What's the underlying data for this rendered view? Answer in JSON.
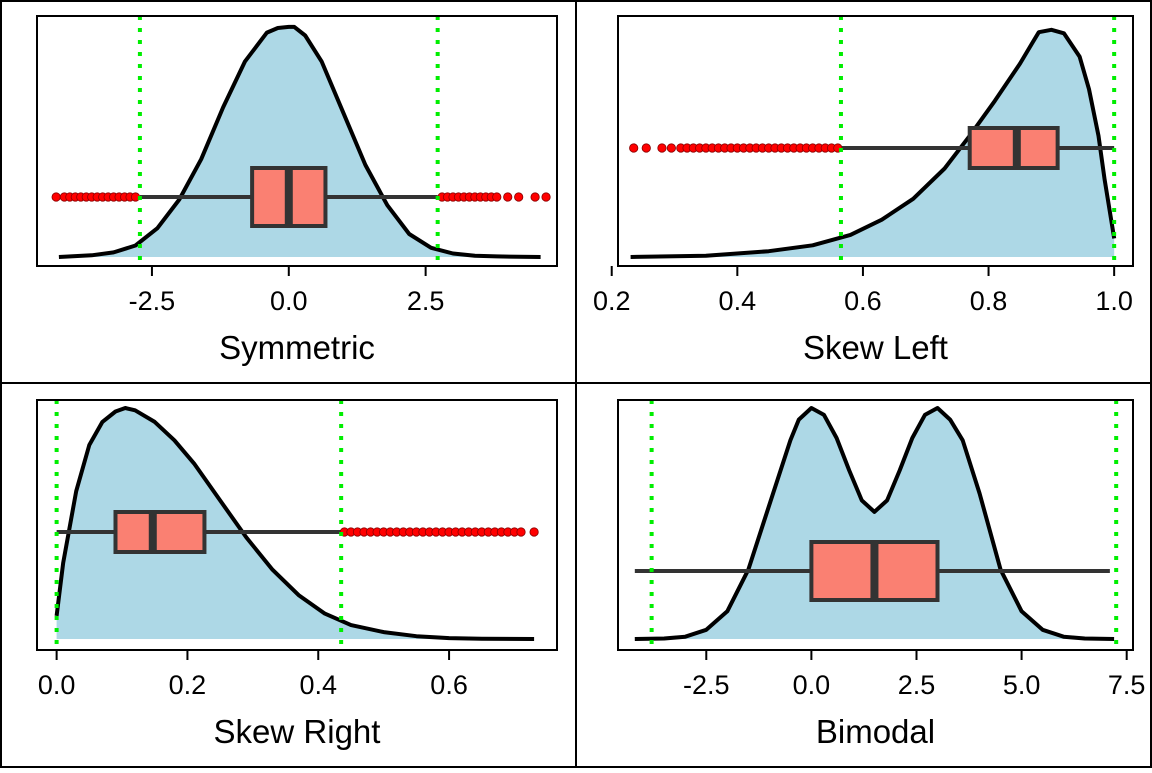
{
  "colors": {
    "density_fill": "#add8e6",
    "density_line": "#000000",
    "box_fill": "#fa8072",
    "box_line": "#333333",
    "outlier": "#ff0000",
    "fence_line": "#00ee00"
  },
  "chart_data": [
    {
      "type": "density_boxplot",
      "xlabel": "Symmetric",
      "xlim": [
        -4.6,
        4.9
      ],
      "xticks": [
        -2.5,
        0.0,
        2.5
      ],
      "xtick_labels": [
        "-2.5",
        "0.0",
        "2.5"
      ],
      "density": {
        "x": [
          -4.2,
          -3.6,
          -3.2,
          -2.8,
          -2.4,
          -2.0,
          -1.6,
          -1.2,
          -0.8,
          -0.4,
          -0.2,
          0.0,
          0.1,
          0.3,
          0.6,
          1.0,
          1.4,
          1.8,
          2.2,
          2.6,
          3.0,
          3.4,
          3.8,
          4.2,
          4.6
        ],
        "y": [
          0.0,
          0.003,
          0.008,
          0.02,
          0.05,
          0.1,
          0.17,
          0.26,
          0.34,
          0.39,
          0.398,
          0.4,
          0.4,
          0.385,
          0.34,
          0.25,
          0.16,
          0.09,
          0.04,
          0.016,
          0.006,
          0.002,
          0.001,
          0.0003,
          0.0
        ]
      },
      "density_ymax": 0.405,
      "box": {
        "whisker_low": -2.72,
        "q1": -0.67,
        "median": 0.0,
        "q3": 0.67,
        "whisker_high": 2.72
      },
      "outliers": [
        -4.25,
        -4.1,
        -4.0,
        -3.9,
        -3.8,
        -3.7,
        -3.6,
        -3.5,
        -3.4,
        -3.3,
        -3.2,
        -3.1,
        -3.0,
        -2.9,
        -2.8,
        2.8,
        2.9,
        3.0,
        3.1,
        3.2,
        3.3,
        3.4,
        3.5,
        3.6,
        3.7,
        3.8,
        4.0,
        4.2,
        4.5,
        4.7
      ],
      "fences": [
        -2.72,
        2.72
      ]
    },
    {
      "type": "density_boxplot",
      "xlabel": "Skew Left",
      "xlim": [
        0.21,
        1.03
      ],
      "xticks": [
        0.2,
        0.4,
        0.6,
        0.8,
        1.0
      ],
      "xtick_labels": [
        "0.2",
        "0.4",
        "0.6",
        "0.8",
        "1.0"
      ],
      "density": {
        "x": [
          0.23,
          0.35,
          0.45,
          0.52,
          0.58,
          0.63,
          0.68,
          0.73,
          0.77,
          0.81,
          0.85,
          0.87,
          0.88,
          0.9,
          0.92,
          0.945,
          0.96,
          0.975,
          0.985,
          1.0
        ],
        "y": [
          0.0,
          0.005,
          0.025,
          0.05,
          0.095,
          0.16,
          0.25,
          0.38,
          0.52,
          0.67,
          0.83,
          0.92,
          0.965,
          0.975,
          0.96,
          0.86,
          0.72,
          0.52,
          0.33,
          0.08
        ]
      },
      "density_ymax": 1.0,
      "box": {
        "whisker_low": 0.565,
        "q1": 0.77,
        "median": 0.845,
        "q3": 0.91,
        "whisker_high": 1.0
      },
      "outliers": [
        0.235,
        0.255,
        0.28,
        0.295,
        0.31,
        0.32,
        0.33,
        0.34,
        0.35,
        0.36,
        0.37,
        0.38,
        0.39,
        0.4,
        0.41,
        0.42,
        0.43,
        0.44,
        0.45,
        0.46,
        0.47,
        0.48,
        0.49,
        0.5,
        0.51,
        0.52,
        0.53,
        0.54,
        0.55,
        0.56
      ],
      "fences": [
        0.565,
        1.0
      ]
    },
    {
      "type": "density_boxplot",
      "xlabel": "Skew Right",
      "xlim": [
        -0.03,
        0.765
      ],
      "xticks": [
        0.0,
        0.2,
        0.4,
        0.6
      ],
      "xtick_labels": [
        "0.0",
        "0.2",
        "0.4",
        "0.6"
      ],
      "density": {
        "x": [
          0.0,
          0.01,
          0.03,
          0.05,
          0.07,
          0.09,
          0.105,
          0.12,
          0.15,
          0.18,
          0.21,
          0.25,
          0.29,
          0.33,
          0.37,
          0.41,
          0.45,
          0.5,
          0.55,
          0.6,
          0.65,
          0.73
        ],
        "y": [
          0.1,
          0.33,
          0.64,
          0.84,
          0.94,
          0.985,
          1.0,
          0.99,
          0.94,
          0.86,
          0.76,
          0.6,
          0.44,
          0.3,
          0.19,
          0.11,
          0.06,
          0.03,
          0.012,
          0.004,
          0.001,
          0.0
        ]
      },
      "density_ymax": 1.0,
      "box": {
        "whisker_low": 0.0,
        "q1": 0.09,
        "median": 0.147,
        "q3": 0.226,
        "whisker_high": 0.435
      },
      "outliers": [
        0.44,
        0.45,
        0.46,
        0.47,
        0.48,
        0.49,
        0.5,
        0.51,
        0.52,
        0.53,
        0.54,
        0.55,
        0.56,
        0.57,
        0.58,
        0.59,
        0.6,
        0.61,
        0.62,
        0.63,
        0.64,
        0.65,
        0.66,
        0.67,
        0.68,
        0.69,
        0.7,
        0.71,
        0.73
      ],
      "fences": [
        0.0,
        0.435
      ]
    },
    {
      "type": "density_boxplot",
      "xlabel": "Bimodal",
      "xlim": [
        -4.6,
        7.65
      ],
      "xticks": [
        -2.5,
        0.0,
        2.5,
        5.0,
        7.5
      ],
      "xtick_labels": [
        "-2.5",
        "0.0",
        "2.5",
        "5.0",
        "7.5"
      ],
      "density": {
        "x": [
          -4.2,
          -3.5,
          -3.0,
          -2.5,
          -2.0,
          -1.5,
          -1.0,
          -0.5,
          -0.3,
          0.0,
          0.3,
          0.6,
          0.9,
          1.2,
          1.5,
          1.8,
          2.1,
          2.4,
          2.7,
          3.0,
          3.3,
          3.6,
          4.0,
          4.5,
          5.0,
          5.5,
          6.0,
          6.5,
          7.2
        ],
        "y": [
          0.0,
          0.002,
          0.01,
          0.04,
          0.12,
          0.3,
          0.58,
          0.86,
          0.95,
          1.0,
          0.97,
          0.87,
          0.73,
          0.6,
          0.55,
          0.6,
          0.73,
          0.87,
          0.97,
          1.0,
          0.95,
          0.86,
          0.63,
          0.3,
          0.12,
          0.04,
          0.01,
          0.002,
          0.0
        ]
      },
      "density_ymax": 1.0,
      "box": {
        "whisker_low": -4.2,
        "q1": 0.0,
        "median": 1.5,
        "q3": 3.0,
        "whisker_high": 7.1
      },
      "outliers": [],
      "fences": [
        -3.8,
        7.25
      ]
    }
  ]
}
